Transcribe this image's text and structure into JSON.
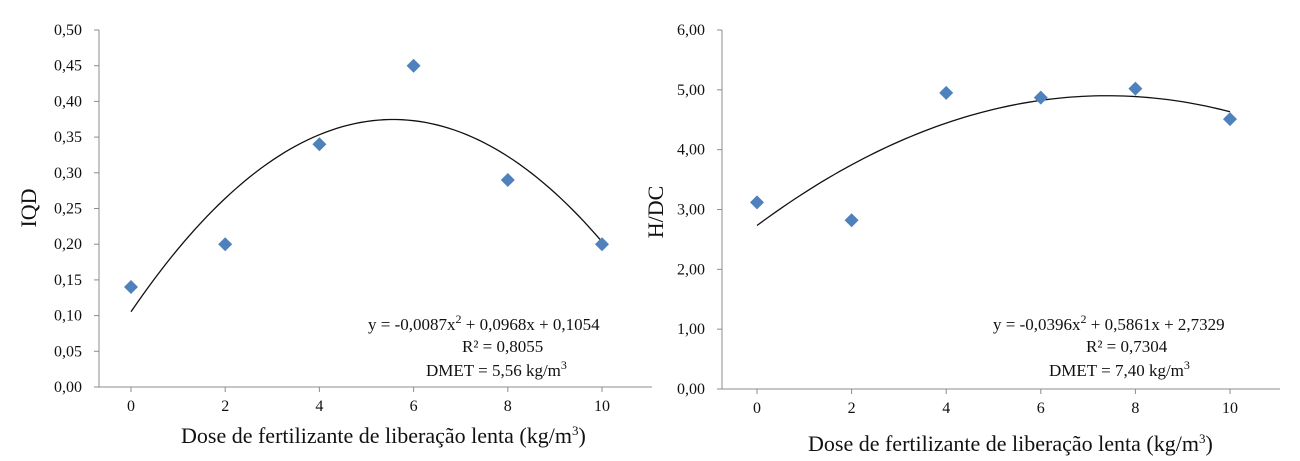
{
  "figure": {
    "point_color": "#4F81BD",
    "curve_color": "#111111"
  },
  "chart_data": [
    {
      "type": "scatter",
      "title": "",
      "ylabel": "IQD",
      "xlabel": {
        "main": "Dose de fertilizante de liberação lenta (kg/m",
        "sup": "3",
        "close": ")"
      },
      "x_ticks": [
        "0",
        "2",
        "4",
        "6",
        "8",
        "10"
      ],
      "y_ticks": [
        "0,00",
        "0,05",
        "0,10",
        "0,15",
        "0,20",
        "0,25",
        "0,30",
        "0,35",
        "0,40",
        "0,45",
        "0,50"
      ],
      "xlim": [
        0,
        10
      ],
      "ylim": [
        0,
        0.5
      ],
      "grid": false,
      "points": [
        {
          "x": 0,
          "y": 0.14
        },
        {
          "x": 2,
          "y": 0.2
        },
        {
          "x": 4,
          "y": 0.34
        },
        {
          "x": 6,
          "y": 0.45
        },
        {
          "x": 8,
          "y": 0.29
        },
        {
          "x": 10,
          "y": 0.2
        }
      ],
      "trendline": {
        "type": "polynomial",
        "coefficients": [
          -0.0087,
          0.0968,
          0.1054
        ],
        "range": [
          0,
          10
        ]
      },
      "annotation": {
        "eq_pre": "y = -0,0087x",
        "eq_sup": "2",
        "eq_post": " + 0,0968x + 0,1054",
        "r2": "R² = 0,8055",
        "dmet_pre": "DMET = 5,56 kg/m",
        "dmet_sup": "3"
      }
    },
    {
      "type": "scatter",
      "title": "",
      "ylabel": "H/DC",
      "xlabel": {
        "main": "Dose de fertilizante de liberação lenta (kg/m",
        "sup": "3",
        "close": ")"
      },
      "x_ticks": [
        "0",
        "2",
        "4",
        "6",
        "8",
        "10"
      ],
      "y_ticks": [
        "0,00",
        "1,00",
        "2,00",
        "3,00",
        "4,00",
        "5,00",
        "6,00"
      ],
      "xlim": [
        0,
        10
      ],
      "ylim": [
        0,
        6
      ],
      "grid": false,
      "points": [
        {
          "x": 0,
          "y": 3.12
        },
        {
          "x": 2,
          "y": 2.82
        },
        {
          "x": 4,
          "y": 4.95
        },
        {
          "x": 6,
          "y": 4.87
        },
        {
          "x": 8,
          "y": 5.02
        },
        {
          "x": 10,
          "y": 4.51
        }
      ],
      "trendline": {
        "type": "polynomial",
        "coefficients": [
          -0.0396,
          0.5861,
          2.7329
        ],
        "range": [
          0,
          10
        ]
      },
      "annotation": {
        "eq_pre": "y = -0,0396x",
        "eq_sup": "2",
        "eq_post": " + 0,5861x + 2,7329",
        "r2": "R² = 0,7304",
        "dmet_pre": "DMET = 7,40 kg/m",
        "dmet_sup": "3"
      }
    }
  ]
}
